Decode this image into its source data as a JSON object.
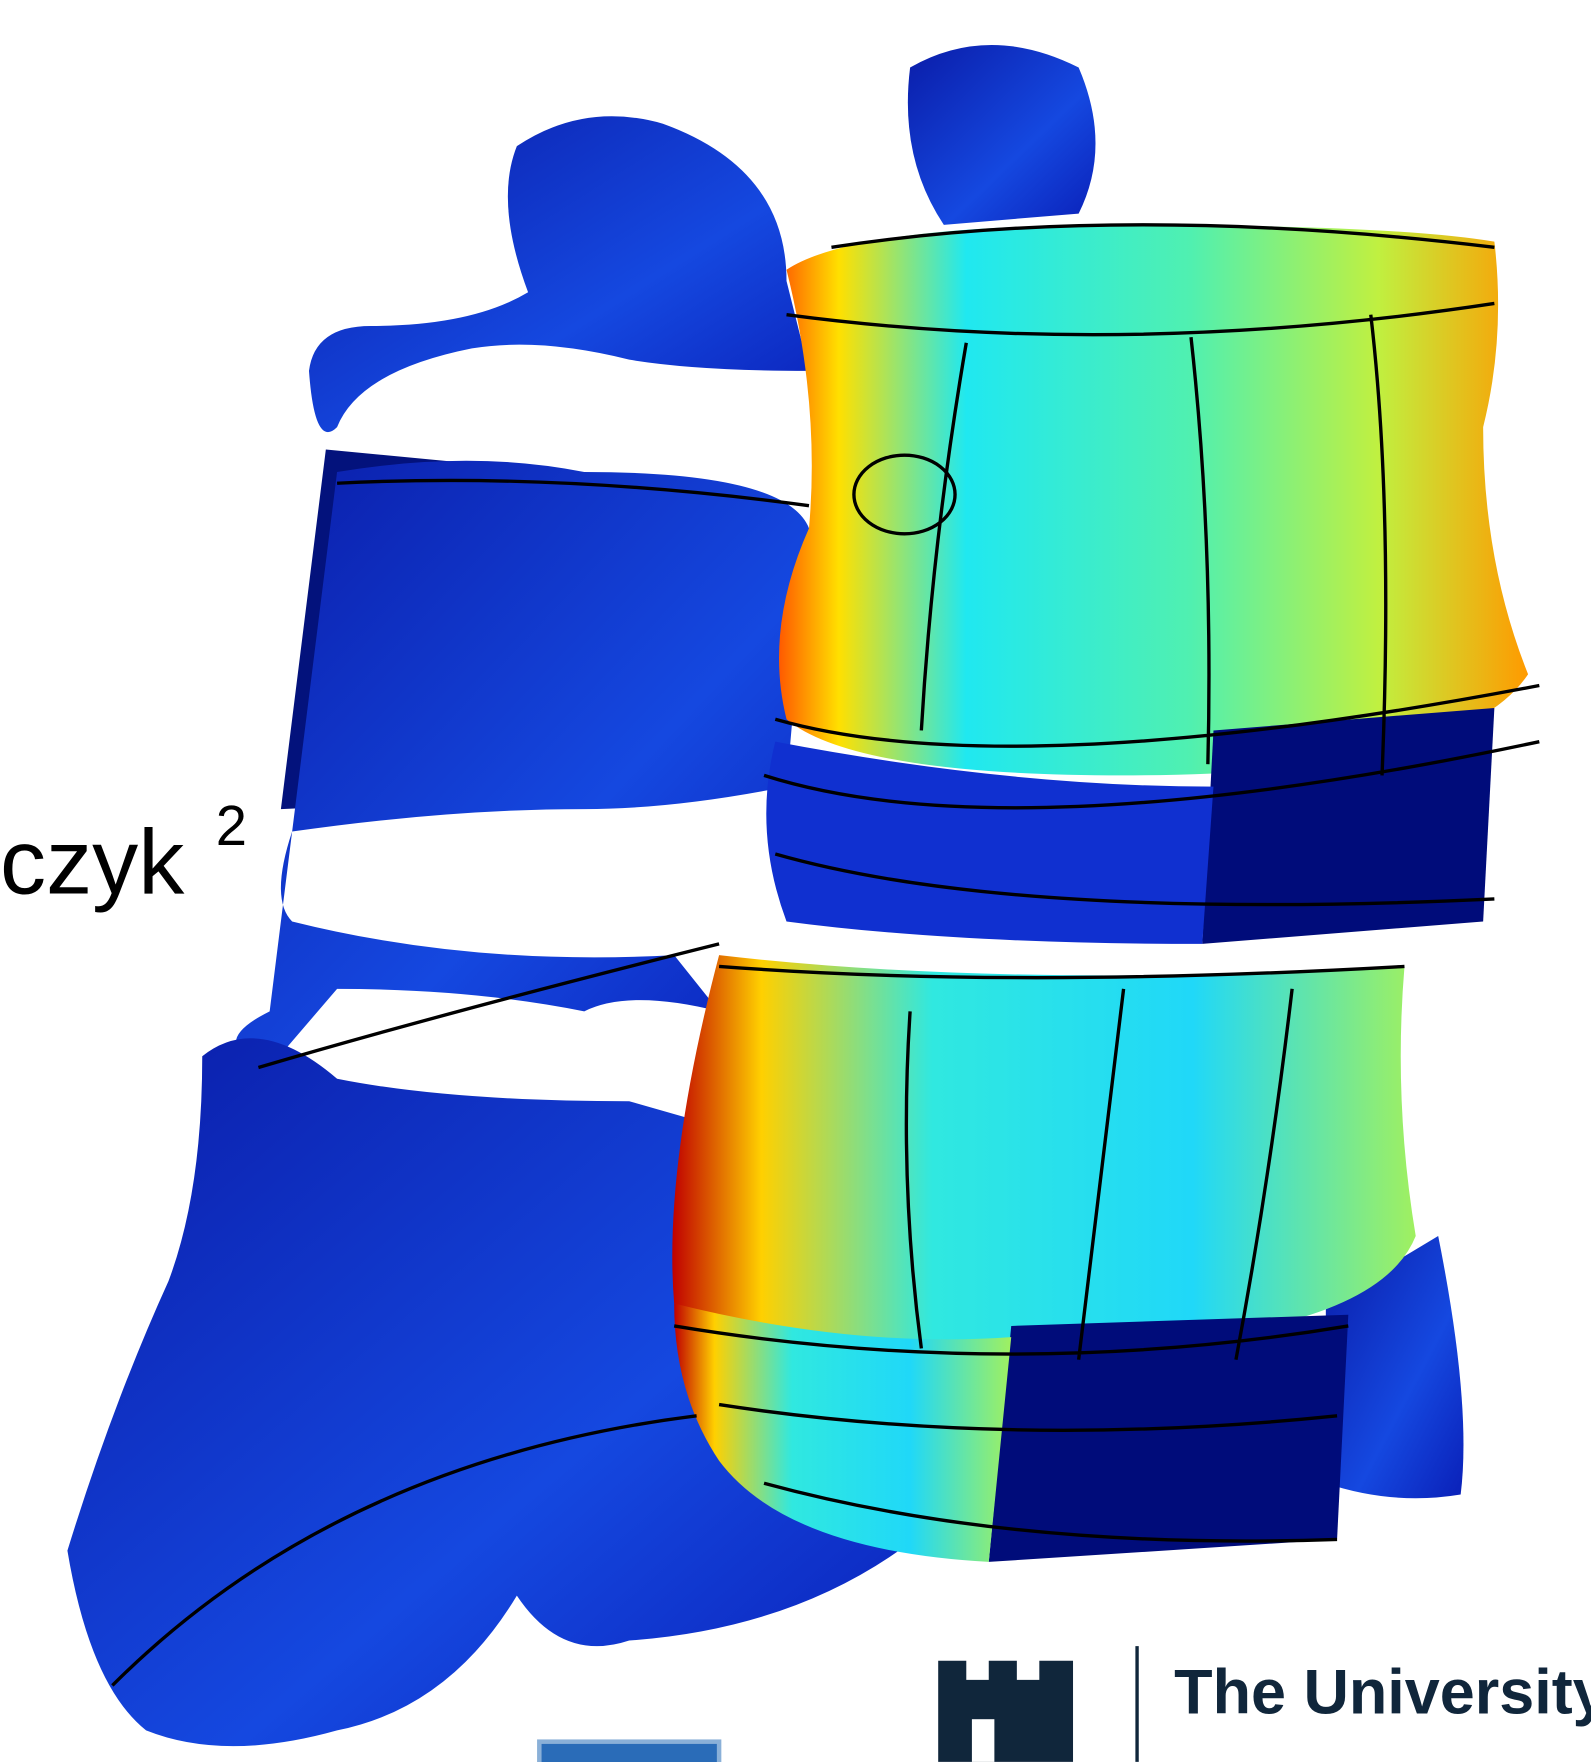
{
  "label": {
    "text": "czyk",
    "superscript": "2"
  },
  "logo": {
    "name": "The University"
  }
}
